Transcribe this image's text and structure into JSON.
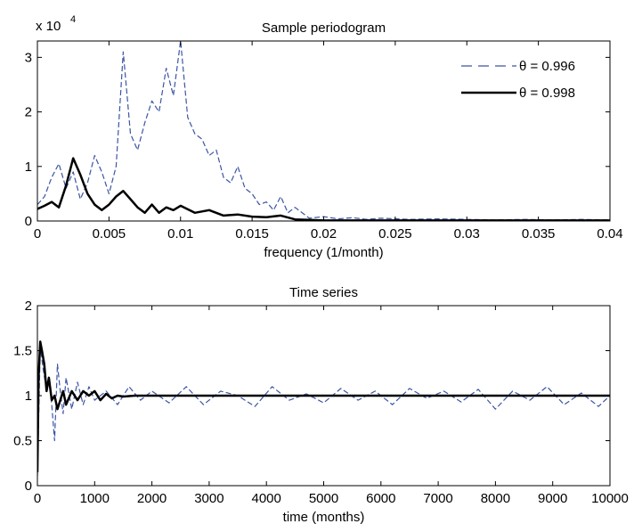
{
  "chart_data": [
    {
      "type": "line",
      "title": "Sample periodogram",
      "xlabel": "frequency (1/month)",
      "ylabel": "",
      "y_multiplier_label": "x 10",
      "y_multiplier_exponent": "4",
      "xlim": [
        0,
        0.04
      ],
      "ylim": [
        0,
        3.3
      ],
      "xticks": [
        0,
        0.005,
        0.01,
        0.015,
        0.02,
        0.025,
        0.03,
        0.035,
        0.04
      ],
      "xtick_labels": [
        "0",
        "0.005",
        "0.01",
        "0.015",
        "0.02",
        "0.025",
        "0.03",
        "0.035",
        "0.04"
      ],
      "yticks": [
        0,
        1,
        2,
        3
      ],
      "ytick_labels": [
        "0",
        "1",
        "2",
        "3"
      ],
      "grid": false,
      "legend_position": "top-right",
      "series": [
        {
          "name": "θ = 0.996",
          "style": "dashed",
          "color": "#3a55a4",
          "x": [
            0,
            0.0005,
            0.001,
            0.0015,
            0.002,
            0.0025,
            0.003,
            0.0035,
            0.004,
            0.0045,
            0.005,
            0.0055,
            0.006,
            0.0065,
            0.007,
            0.0075,
            0.008,
            0.0085,
            0.009,
            0.0095,
            0.01,
            0.0105,
            0.011,
            0.0115,
            0.012,
            0.0125,
            0.013,
            0.0135,
            0.014,
            0.0145,
            0.015,
            0.0155,
            0.016,
            0.0165,
            0.017,
            0.0175,
            0.018,
            0.019,
            0.02,
            0.021,
            0.022,
            0.023,
            0.024,
            0.026,
            0.028,
            0.03,
            0.032,
            0.034,
            0.036,
            0.038,
            0.04
          ],
          "y": [
            0.3,
            0.45,
            0.8,
            1.05,
            0.6,
            0.9,
            0.4,
            0.7,
            1.2,
            0.9,
            0.5,
            1.0,
            3.1,
            1.6,
            1.3,
            1.8,
            2.2,
            2.0,
            2.8,
            2.3,
            3.3,
            1.9,
            1.6,
            1.5,
            1.2,
            1.3,
            0.8,
            0.7,
            1.0,
            0.6,
            0.5,
            0.3,
            0.35,
            0.2,
            0.45,
            0.15,
            0.25,
            0.05,
            0.08,
            0.04,
            0.06,
            0.03,
            0.05,
            0.03,
            0.04,
            0.03,
            0.02,
            0.03,
            0.02,
            0.03,
            0.02
          ]
        },
        {
          "name": "θ = 0.998",
          "style": "solid",
          "color": "#000000",
          "x": [
            0,
            0.0005,
            0.001,
            0.0015,
            0.002,
            0.0025,
            0.003,
            0.0035,
            0.004,
            0.0045,
            0.005,
            0.0055,
            0.006,
            0.0065,
            0.007,
            0.0075,
            0.008,
            0.0085,
            0.009,
            0.0095,
            0.01,
            0.011,
            0.012,
            0.013,
            0.014,
            0.015,
            0.016,
            0.017,
            0.018,
            0.019,
            0.02,
            0.022,
            0.024,
            0.026,
            0.028,
            0.03,
            0.032,
            0.034,
            0.036,
            0.038,
            0.04
          ],
          "y": [
            0.22,
            0.28,
            0.35,
            0.25,
            0.65,
            1.15,
            0.85,
            0.5,
            0.3,
            0.2,
            0.3,
            0.45,
            0.55,
            0.4,
            0.25,
            0.15,
            0.3,
            0.15,
            0.25,
            0.2,
            0.28,
            0.15,
            0.2,
            0.1,
            0.12,
            0.08,
            0.07,
            0.1,
            0.03,
            0.02,
            0.01,
            0.01,
            0.01,
            0.01,
            0.01,
            0.01,
            0.01,
            0.01,
            0.01,
            0.01,
            0.01
          ]
        }
      ]
    },
    {
      "type": "line",
      "title": "Time series",
      "xlabel": "time (months)",
      "ylabel": "",
      "xlim": [
        0,
        10000
      ],
      "ylim": [
        0,
        2
      ],
      "xticks": [
        0,
        1000,
        2000,
        3000,
        4000,
        5000,
        6000,
        7000,
        8000,
        9000,
        10000
      ],
      "xtick_labels": [
        "0",
        "1000",
        "2000",
        "3000",
        "4000",
        "5000",
        "6000",
        "7000",
        "8000",
        "9000",
        "10000"
      ],
      "yticks": [
        0,
        0.5,
        1,
        1.5,
        2
      ],
      "ytick_labels": [
        "0",
        "0.5",
        "1",
        "1.5",
        "2"
      ],
      "grid": false,
      "series": [
        {
          "name": "θ = 0.996",
          "style": "dashed",
          "color": "#3a55a4",
          "x": [
            0,
            50,
            100,
            150,
            200,
            250,
            300,
            350,
            400,
            450,
            500,
            600,
            700,
            800,
            900,
            1000,
            1200,
            1400,
            1600,
            1800,
            2000,
            2300,
            2600,
            2900,
            3200,
            3500,
            3800,
            4100,
            4400,
            4700,
            5000,
            5300,
            5600,
            5900,
            6200,
            6500,
            6800,
            7100,
            7400,
            7700,
            8000,
            8300,
            8600,
            8900,
            9200,
            9500,
            9800,
            10000
          ],
          "y": [
            0.1,
            1.55,
            1.3,
            1.1,
            1.2,
            0.9,
            0.5,
            1.35,
            1.05,
            0.8,
            1.2,
            0.85,
            1.15,
            0.9,
            1.1,
            0.95,
            1.05,
            0.9,
            1.1,
            0.95,
            1.05,
            0.92,
            1.1,
            0.9,
            1.05,
            1.0,
            0.88,
            1.1,
            0.95,
            1.02,
            0.92,
            1.08,
            0.95,
            1.05,
            0.9,
            1.08,
            0.97,
            1.05,
            0.93,
            1.07,
            0.85,
            1.05,
            0.95,
            1.1,
            0.9,
            1.03,
            0.88,
            1.0
          ]
        },
        {
          "name": "θ = 0.998",
          "style": "solid",
          "color": "#000000",
          "x": [
            0,
            20,
            50,
            80,
            120,
            160,
            200,
            250,
            300,
            350,
            400,
            450,
            500,
            600,
            700,
            800,
            900,
            1000,
            1100,
            1200,
            1300,
            1400,
            1500,
            1700,
            2000,
            2500,
            3000,
            3500,
            4000,
            5000,
            6000,
            7000,
            8000,
            9000,
            10000
          ],
          "y": [
            0.15,
            1.2,
            1.6,
            1.5,
            1.35,
            1.05,
            1.2,
            0.95,
            1.0,
            0.85,
            0.95,
            1.05,
            0.9,
            1.05,
            0.95,
            1.05,
            1.0,
            1.05,
            0.95,
            1.02,
            0.97,
            1.0,
            0.99,
            1.0,
            1.0,
            1.0,
            1.0,
            1.0,
            1.0,
            1.0,
            1.0,
            1.0,
            1.0,
            1.0,
            1.0
          ]
        }
      ]
    }
  ]
}
